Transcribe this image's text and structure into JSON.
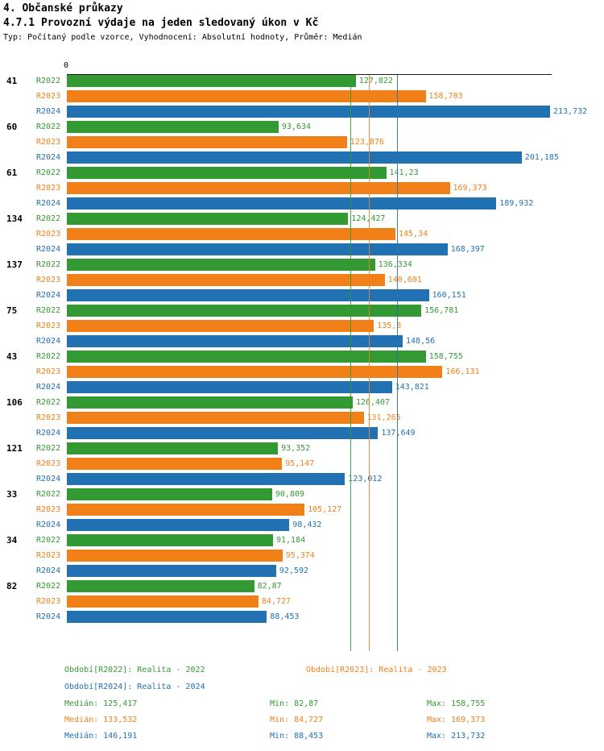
{
  "header": {
    "title": "4. Občanské průkazy",
    "subtitle": "4.7.1 Provozní výdaje na jeden sledovaný úkon v Kč",
    "meta": "Typ: Počítaný podle vzorce, Vyhodnocení: Absolutní hodnoty, Průměr: Medián"
  },
  "chart_data": {
    "type": "bar",
    "orientation": "horizontal",
    "x_origin_label": "0",
    "x_max": 213.732,
    "series_labels": [
      "R2022",
      "R2023",
      "R2024"
    ],
    "colors": [
      "#339933",
      "#F28019",
      "#2271B3"
    ],
    "groups": [
      {
        "category": "41",
        "values": [
          127.822,
          158.703,
          213.732
        ],
        "labels": [
          "127,822",
          "158,703",
          "213,732"
        ]
      },
      {
        "category": "60",
        "values": [
          93.634,
          123.876,
          201.185
        ],
        "labels": [
          "93,634",
          "123,876",
          "201,185"
        ]
      },
      {
        "category": "61",
        "values": [
          141.23,
          169.373,
          189.932
        ],
        "labels": [
          "141,23",
          "169,373",
          "189,932"
        ]
      },
      {
        "category": "134",
        "values": [
          124.427,
          145.34,
          168.397
        ],
        "labels": [
          "124,427",
          "145,34",
          "168,397"
        ]
      },
      {
        "category": "137",
        "values": [
          136.334,
          140.601,
          160.151
        ],
        "labels": [
          "136,334",
          "140,601",
          "160,151"
        ]
      },
      {
        "category": "75",
        "values": [
          156.781,
          135.8,
          148.56
        ],
        "labels": [
          "156,781",
          "135,8",
          "148,56"
        ]
      },
      {
        "category": "43",
        "values": [
          158.755,
          166.131,
          143.821
        ],
        "labels": [
          "158,755",
          "166,131",
          "143,821"
        ]
      },
      {
        "category": "106",
        "values": [
          126.407,
          131.265,
          137.649
        ],
        "labels": [
          "126,407",
          "131,265",
          "137,649"
        ]
      },
      {
        "category": "121",
        "values": [
          93.352,
          95.147,
          123.012
        ],
        "labels": [
          "93,352",
          "95,147",
          "123,012"
        ]
      },
      {
        "category": "33",
        "values": [
          90.809,
          105.127,
          98.432
        ],
        "labels": [
          "90,809",
          "105,127",
          "98,432"
        ]
      },
      {
        "category": "34",
        "values": [
          91.184,
          95.374,
          92.592
        ],
        "labels": [
          "91,184",
          "95,374",
          "92,592"
        ]
      },
      {
        "category": "82",
        "values": [
          82.87,
          84.727,
          88.453
        ],
        "labels": [
          "82,87",
          "84,727",
          "88,453"
        ]
      }
    ],
    "median_lines": [
      {
        "series": "R2022",
        "value": 125.417,
        "color": "#339933"
      },
      {
        "series": "R2023",
        "value": 133.532,
        "color": "#F28019"
      },
      {
        "series": "R2024",
        "value": 146.191,
        "color": "#2271B3"
      }
    ]
  },
  "legend": {
    "items": [
      {
        "label": "Období[R2022]: Realita - 2022",
        "color": "#339933"
      },
      {
        "label": "Období[R2023]: Realita - 2023",
        "color": "#F28019"
      },
      {
        "label": "Období[R2024]: Realita - 2024",
        "color": "#2271B3"
      }
    ]
  },
  "stats": {
    "rows": [
      {
        "median": "Medián: 125,417",
        "min": "Min: 82,87",
        "max": "Max: 158,755",
        "color": "#339933"
      },
      {
        "median": "Medián: 133,532",
        "min": "Min: 84,727",
        "max": "Max: 169,373",
        "color": "#F28019"
      },
      {
        "median": "Medián: 146,191",
        "min": "Min: 88,453",
        "max": "Max: 213,732",
        "color": "#2271B3"
      }
    ]
  }
}
